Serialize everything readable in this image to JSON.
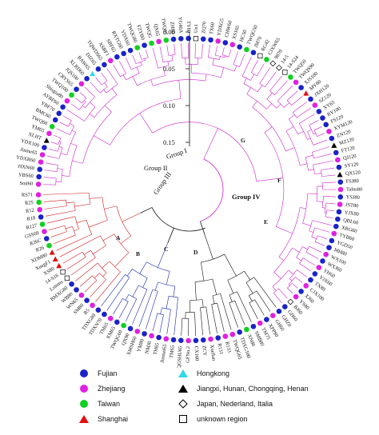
{
  "scale": {
    "ticks": [
      "0.00",
      "0.05",
      "0.10",
      "0.15"
    ]
  },
  "groups": {
    "g1": "Group I",
    "g2": "Group II",
    "g3": "Group III",
    "g4": "Group IV"
  },
  "subclusters": [
    "A",
    "B",
    "C",
    "D",
    "E",
    "F",
    "G"
  ],
  "colors": {
    "fujian": "#1a23c8",
    "zhejiang": "#e020e0",
    "taiwan": "#10d020",
    "shanghai": "#e01010",
    "hongkong": "#30d8e8",
    "other_china": "#000000",
    "group1": "#d11a1a",
    "group2": "#1426b0",
    "group3": "#111111",
    "group4": "#cc22cc"
  },
  "legend": [
    {
      "label": "Fujian",
      "marker": "circle",
      "color": "#1a23c8"
    },
    {
      "label": "Zhejiang",
      "marker": "circle",
      "color": "#e020e0"
    },
    {
      "label": "Taiwan",
      "marker": "circle",
      "color": "#10d020"
    },
    {
      "label": "Shanghai",
      "marker": "triangle",
      "color": "#e01010"
    },
    {
      "label": "Hongkong",
      "marker": "triangle",
      "color": "#30d8e8"
    },
    {
      "label": "Jiangxi, Hunan, Chongqing, Henan",
      "marker": "triangle",
      "color": "#000000"
    },
    {
      "label": "Japan, Nederland, Italia",
      "marker": "diamond",
      "color": "#000000"
    },
    {
      "label": "unknown region",
      "marker": "square",
      "color": "#000000"
    }
  ],
  "tips": [
    {
      "label": "Sml60",
      "group": 4,
      "region": "zhejiang"
    },
    {
      "label": "YBS60",
      "group": 4,
      "region": "fujian"
    },
    {
      "label": "HXN60",
      "group": 4,
      "region": "fujian"
    },
    {
      "label": "YDXR60",
      "group": 4,
      "region": "zhejiang"
    },
    {
      "label": "Jinme65",
      "group": 4,
      "region": "zhejiang"
    },
    {
      "label": "YDX100",
      "group": 4,
      "region": "fujian"
    },
    {
      "label": "XLHT",
      "group": 4,
      "region": "other_china"
    },
    {
      "label": "YM65",
      "group": 4,
      "region": "zhejiang"
    },
    {
      "label": "TWQ60",
      "group": 4,
      "region": "taiwan"
    },
    {
      "label": "BMC60",
      "group": 4,
      "region": "fujian"
    },
    {
      "label": "YBF70",
      "group": 4,
      "region": "fujian"
    },
    {
      "label": "AYBF60",
      "group": 4,
      "region": "fujian"
    },
    {
      "label": "Shisgia80",
      "group": 4,
      "region": "zhejiang"
    },
    {
      "label": "TWQ100",
      "group": 4,
      "region": "taiwan"
    },
    {
      "label": "CRYS65",
      "group": 4,
      "region": "fujian"
    },
    {
      "label": "JQS100",
      "group": 4,
      "region": "zhejiang"
    },
    {
      "label": "XLRD60",
      "group": 4,
      "region": "fujian"
    },
    {
      "label": "BAW65",
      "group": 4,
      "region": "hongkong"
    },
    {
      "label": "DJZ65",
      "group": 4,
      "region": "fujian"
    },
    {
      "label": "TQWDS65",
      "group": 4,
      "region": "fujian"
    },
    {
      "label": "XSBF1",
      "group": 4,
      "region": "zhejiang"
    },
    {
      "label": "SBF65",
      "group": 4,
      "region": "fujian"
    },
    {
      "label": "RXTG60",
      "group": 4,
      "region": "fujian"
    },
    {
      "label": "YDX60",
      "group": 4,
      "region": "fujian"
    },
    {
      "label": "TWQG80",
      "group": 4,
      "region": "taiwan"
    },
    {
      "label": "FZYB0",
      "group": 4,
      "region": "fujian"
    },
    {
      "label": "TWQG",
      "group": 4,
      "region": "taiwan"
    },
    {
      "label": "QX65",
      "group": 4,
      "region": "zhejiang"
    },
    {
      "label": "TWQ65",
      "group": 4,
      "region": "taiwan"
    },
    {
      "label": "ZH80",
      "group": 4,
      "region": "fujian"
    },
    {
      "label": "YG40A",
      "group": 4,
      "region": "fujian"
    },
    {
      "label": "TY80",
      "group": 4,
      "region": "fujian"
    },
    {
      "label": "Un1",
      "group": 4,
      "region": "unknown"
    },
    {
      "label": "ZQ70",
      "group": 4,
      "region": "fujian"
    },
    {
      "label": "TX60",
      "group": 4,
      "region": "fujian"
    },
    {
      "label": "YDXG5",
      "group": 4,
      "region": "zhejiang"
    },
    {
      "label": "CHW60",
      "group": 4,
      "region": "fujian"
    },
    {
      "label": "XS165",
      "group": 4,
      "region": "zhejiang"
    },
    {
      "label": "HC50",
      "group": 4,
      "region": "fujian"
    },
    {
      "label": "TWQG50",
      "group": 4,
      "region": "taiwan"
    },
    {
      "label": "JM70",
      "group": 4,
      "region": "fujian"
    },
    {
      "label": "RG42",
      "group": 4,
      "region": "unknown"
    },
    {
      "label": "CJXW65",
      "group": 4,
      "region": "taiwan"
    },
    {
      "label": "9870",
      "group": 4,
      "region": "japan"
    },
    {
      "label": "14-5",
      "group": 4,
      "region": "japan"
    },
    {
      "label": "14-S24",
      "group": 4,
      "region": "unknown"
    },
    {
      "label": "TWQ50",
      "group": 4,
      "region": "taiwan"
    },
    {
      "label": "TWQS90",
      "group": 4,
      "region": "zhejiang"
    },
    {
      "label": "XJS100",
      "group": 4,
      "region": "fujian"
    },
    {
      "label": "MY80",
      "group": 4,
      "region": "shanghai"
    },
    {
      "label": "JXH120",
      "group": 4,
      "region": "fujian"
    },
    {
      "label": "SZ120",
      "group": 4,
      "region": "zhejiang"
    },
    {
      "label": "XY65",
      "group": 4,
      "region": "fujian"
    },
    {
      "label": "BY100",
      "group": 4,
      "region": "fujian"
    },
    {
      "label": "FS120",
      "group": 4,
      "region": "fujian"
    },
    {
      "label": "XYM120",
      "group": 4,
      "region": "zhejiang"
    },
    {
      "label": "ZN120",
      "group": 4,
      "region": "fujian"
    },
    {
      "label": "MZ120",
      "group": 4,
      "region": "other_china"
    },
    {
      "label": "FT120",
      "group": 4,
      "region": "fujian"
    },
    {
      "label": "QJ120",
      "group": 4,
      "region": "zhejiang"
    },
    {
      "label": "SY120",
      "group": 4,
      "region": "fujian"
    },
    {
      "label": "QX120",
      "group": 4,
      "region": "other_china"
    },
    {
      "label": "FSJ80",
      "group": 4,
      "region": "fujian"
    },
    {
      "label": "Talns80",
      "group": 4,
      "region": "zhejiang"
    },
    {
      "label": "YSJ80",
      "group": 4,
      "region": "fujian"
    },
    {
      "label": "JST80",
      "group": 4,
      "region": "zhejiang"
    },
    {
      "label": "YJX80",
      "group": 4,
      "region": "fujian"
    },
    {
      "label": "QBL60",
      "group": 4,
      "region": "fujian"
    },
    {
      "label": "XRG60",
      "group": 4,
      "region": "fujian"
    },
    {
      "label": "TYB60",
      "group": 4,
      "region": "zhejiang"
    },
    {
      "label": "YGD50",
      "group": 4,
      "region": "fujian"
    },
    {
      "label": "MH80",
      "group": 4,
      "region": "fujian"
    },
    {
      "label": "WX100",
      "group": 4,
      "region": "zhejiang"
    },
    {
      "label": "WXJ60",
      "group": 4,
      "region": "fujian"
    },
    {
      "label": "YH60",
      "group": 4,
      "region": "zhejiang"
    },
    {
      "label": "YJX60",
      "group": 4,
      "region": "fujian"
    },
    {
      "label": "TX80",
      "group": 4,
      "region": "fujian"
    },
    {
      "label": "CJX100",
      "group": 4,
      "region": "zhejiang"
    },
    {
      "label": "XJ60",
      "group": 4,
      "region": "fujian"
    },
    {
      "label": "YS80",
      "group": 4,
      "region": "zhejiang"
    },
    {
      "label": "BJ60",
      "group": 4,
      "region": "japan"
    },
    {
      "label": "GH60",
      "group": 4,
      "region": "fujian"
    },
    {
      "label": "GHZ0",
      "group": 3,
      "region": "fujian"
    },
    {
      "label": "GH60",
      "group": 3,
      "region": "zhejiang"
    },
    {
      "label": "XPP80",
      "group": 3,
      "region": "fujian"
    },
    {
      "label": "TM75",
      "group": 3,
      "region": "zhejiang"
    },
    {
      "label": "SMB80",
      "group": 3,
      "region": "fujian"
    },
    {
      "label": "XN80",
      "group": 3,
      "region": "taiwan"
    },
    {
      "label": "TDXG100",
      "group": 3,
      "region": "fujian"
    },
    {
      "label": "TWQG65",
      "group": 3,
      "region": "zhejiang"
    },
    {
      "label": "R133",
      "group": 3,
      "region": "zhejiang"
    },
    {
      "label": "R131",
      "group": 3,
      "region": "fujian"
    },
    {
      "label": "Xuellan",
      "group": 3,
      "region": "zhejiang"
    },
    {
      "label": "ZCY",
      "group": 3,
      "region": "fujian"
    },
    {
      "label": "CX160",
      "group": 3,
      "region": "fujian"
    },
    {
      "label": "GFNo.2",
      "group": 3,
      "region": "zhejiang"
    },
    {
      "label": "QGSHU65",
      "group": 3,
      "region": "fujian"
    },
    {
      "label": "TM65",
      "group": 2,
      "region": "fujian"
    },
    {
      "label": "Jinmei65",
      "group": 2,
      "region": "zhejiang"
    },
    {
      "label": "TH65",
      "group": 2,
      "region": "fujian"
    },
    {
      "label": "NMJ0",
      "group": 2,
      "region": "zhejiang"
    },
    {
      "label": "YM80",
      "group": 2,
      "region": "fujian"
    },
    {
      "label": "XMSH60",
      "group": 2,
      "region": "zhejiang"
    },
    {
      "label": "QX90",
      "group": 2,
      "region": "fujian"
    },
    {
      "label": "TWQG60",
      "group": 2,
      "region": "taiwan"
    },
    {
      "label": "XM65",
      "group": 2,
      "region": "fujian"
    },
    {
      "label": "TM65",
      "group": 2,
      "region": "zhejiang"
    },
    {
      "label": "TDXN70",
      "group": 2,
      "region": "fujian"
    },
    {
      "label": "TDXG80",
      "group": 2,
      "region": "fujian"
    },
    {
      "label": "R5",
      "group": 1,
      "region": "zhejiang"
    },
    {
      "label": "SM80",
      "group": 1,
      "region": "fujian"
    },
    {
      "label": "WN65",
      "group": 1,
      "region": "zhejiang"
    },
    {
      "label": "WB80",
      "group": 1,
      "region": "fujian"
    },
    {
      "label": "BMXG80",
      "group": 1,
      "region": "fujian"
    },
    {
      "label": "Lsmms",
      "group": 1,
      "region": "unknown"
    },
    {
      "label": "14-S16",
      "group": 1,
      "region": "unknown"
    },
    {
      "label": "XS80",
      "group": 1,
      "region": "shanghai"
    },
    {
      "label": "XuegF1",
      "group": 1,
      "region": "shanghai"
    },
    {
      "label": "XDM80",
      "group": 1,
      "region": "shanghai"
    },
    {
      "label": "R26",
      "group": 1,
      "region": "taiwan"
    },
    {
      "label": "R26C",
      "group": 1,
      "region": "fujian"
    },
    {
      "label": "GSS69",
      "group": 1,
      "region": "zhejiang"
    },
    {
      "label": "R127",
      "group": 1,
      "region": "taiwan"
    },
    {
      "label": "R18",
      "group": 1,
      "region": "fujian"
    },
    {
      "label": "R12",
      "group": 1,
      "region": "zhejiang"
    },
    {
      "label": "R25",
      "group": 1,
      "region": "taiwan"
    },
    {
      "label": "RS71",
      "group": 1,
      "region": "zhejiang"
    }
  ]
}
